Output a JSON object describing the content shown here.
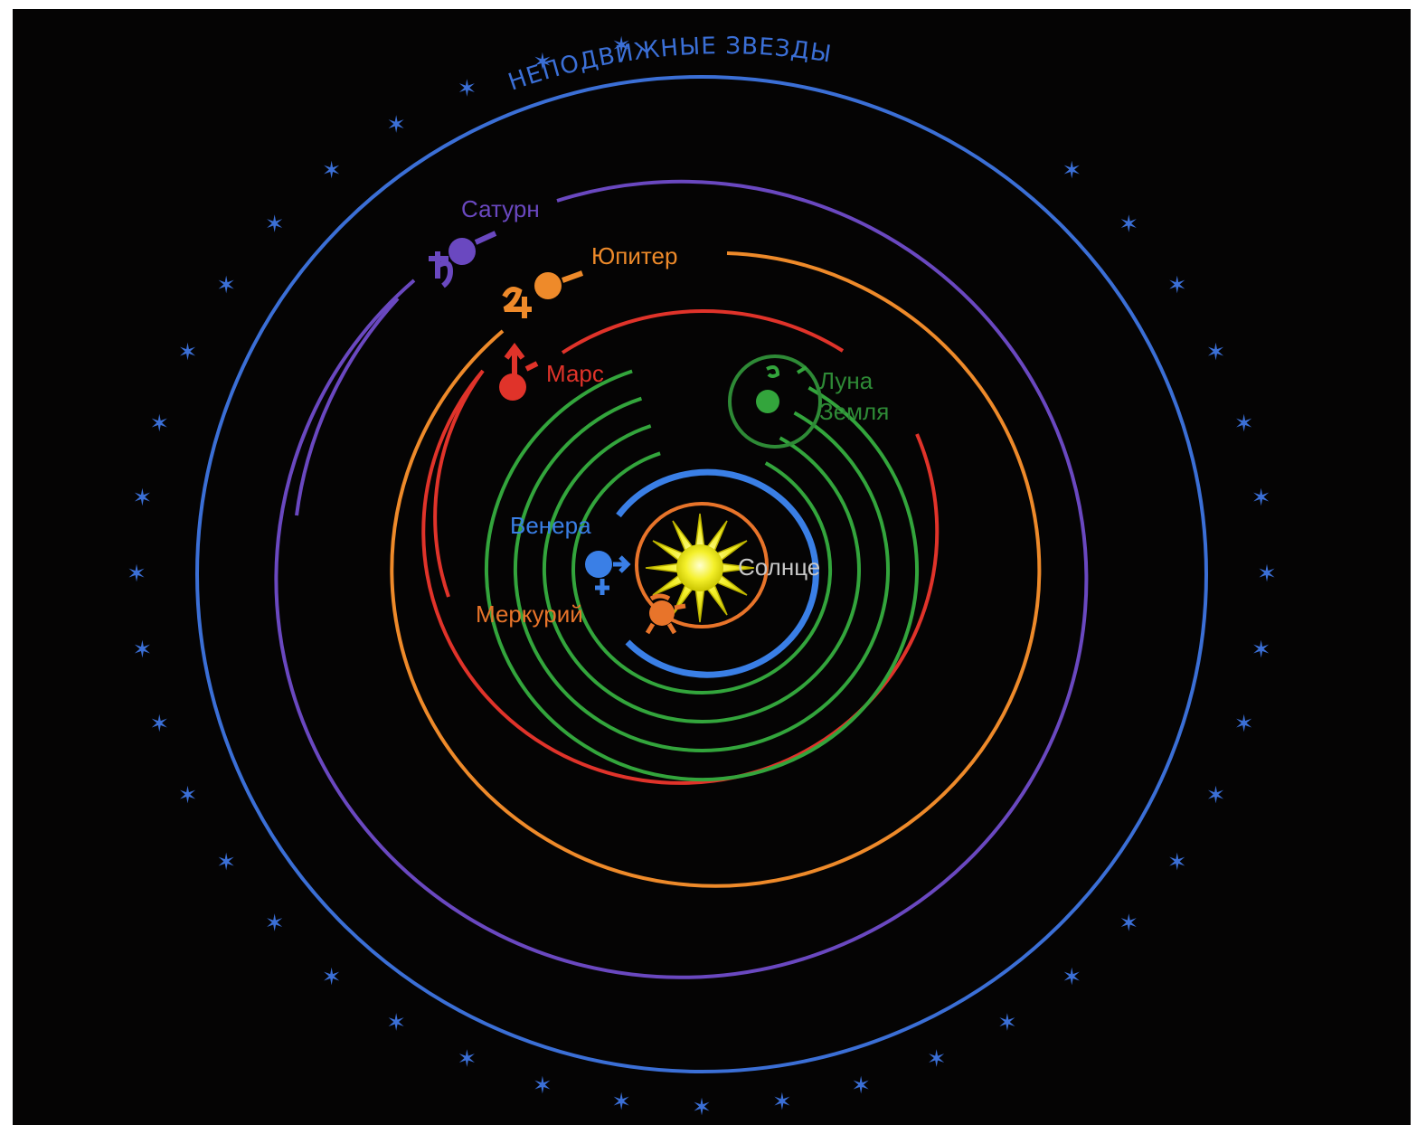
{
  "colors": {
    "background": "#050404",
    "fixed_stars": "#3b6fd6",
    "saturn": "#6a48c0",
    "jupiter": "#ee8a2a",
    "mars": "#e0332a",
    "earth": "#33a53c",
    "moon_orbit": "#2e8a36",
    "venus": "#3a7fe6",
    "mercury": "#e8742a",
    "sun": "#f2f020"
  },
  "labels": {
    "fixed_stars": "НЕПОДВИЖНЫЕ ЗВЕЗДЫ",
    "saturn": "Сатурн",
    "jupiter": "Юпитер",
    "mars": "Марс",
    "moon": "Луна",
    "earth": "Земля",
    "venus": "Венера",
    "mercury": "Меркурий",
    "sun": "Солнце"
  },
  "icons": {
    "star": "star-icon",
    "sun": "sun-icon",
    "saturn_symbol": "saturn-symbol-icon",
    "jupiter_symbol": "jupiter-symbol-icon",
    "mars_symbol": "mars-symbol-icon",
    "venus_symbol": "venus-symbol-icon",
    "mercury_symbol": "mercury-symbol-icon",
    "moon_symbol": "moon-symbol-icon"
  }
}
